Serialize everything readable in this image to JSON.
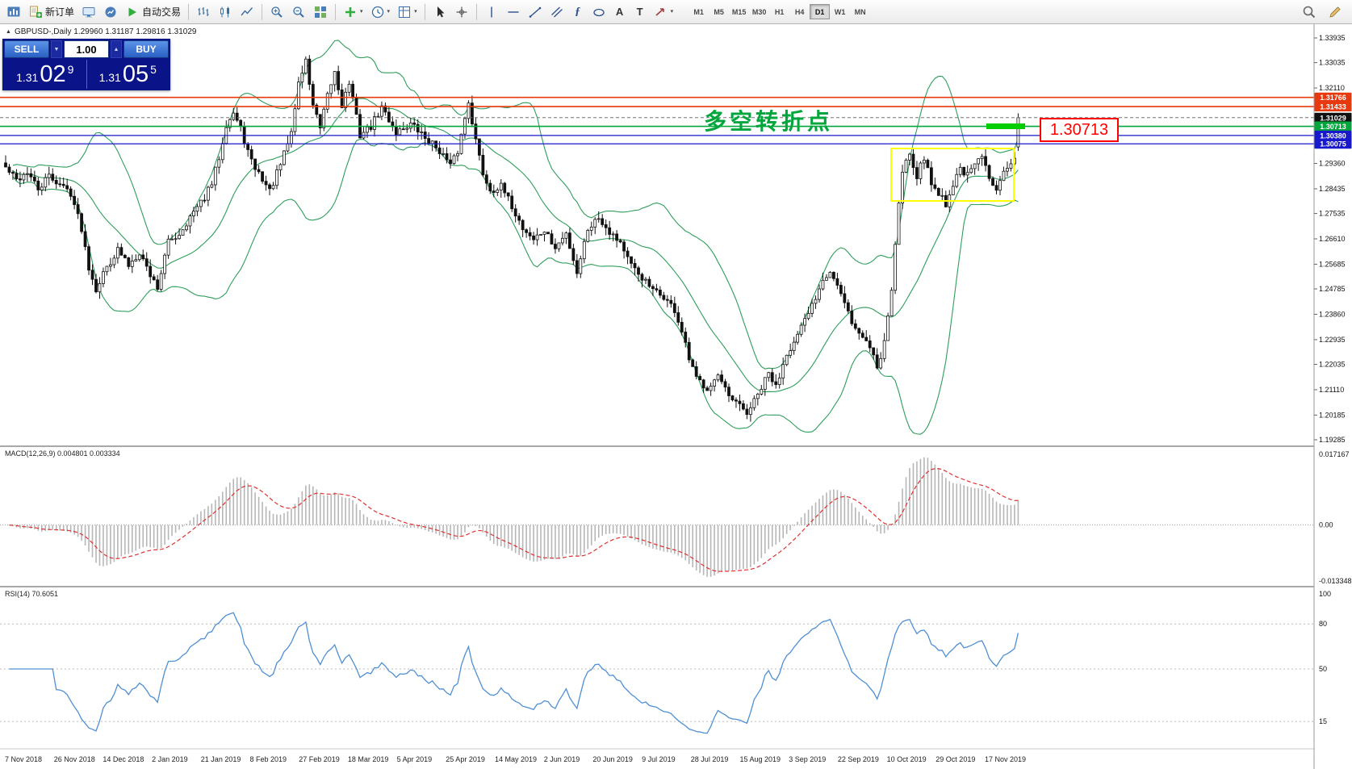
{
  "icons": {
    "dropdown_arrow": "▾",
    "up_spinner": "▲",
    "down_spinner": "▼",
    "collapse_triangle": "▲",
    "fibonacci_tool": "ƒ",
    "text_tool": "A",
    "label_tool": "T"
  },
  "toolbar": {
    "new_order": "新订单",
    "auto_trading": "自动交易",
    "timeframes": [
      "M1",
      "M5",
      "M15",
      "M30",
      "H1",
      "H4",
      "D1",
      "W1",
      "MN"
    ],
    "active_timeframe": "D1"
  },
  "trade_panel": {
    "sell_label": "SELL",
    "buy_label": "BUY",
    "volume": "1.00",
    "sell_price_main": "1.31",
    "sell_price_big": "02",
    "sell_price_sup": "9",
    "buy_price_main": "1.31",
    "buy_price_big": "05",
    "buy_price_sup": "5"
  },
  "chart": {
    "title": "GBPUSD-,Daily 1.29960 1.31187 1.29816 1.31029"
  },
  "indicators": {
    "macd_label": "MACD(12,26,9) 0.004801 0.003334",
    "rsi_label": "RSI(14) 70.6051"
  },
  "annotations": {
    "turning_point_text": "多空转折点",
    "price_label": "1.30713"
  },
  "chart_data": {
    "type": "candlestick",
    "symbol": "GBPUSD-",
    "timeframe": "Daily",
    "current_bar": {
      "open": 1.2996,
      "high": 1.31187,
      "low": 1.29816,
      "close": 1.31029
    },
    "num_candles": 281,
    "price_axis": {
      "max": 1.33935,
      "min": 1.19285,
      "ticks": [
        "1.33935",
        "1.33035",
        "1.32110",
        "1.29360",
        "1.28435",
        "1.27535",
        "1.26610",
        "1.25685",
        "1.24785",
        "1.23860",
        "1.22935",
        "1.22035",
        "1.21110",
        "1.20185",
        "1.19285"
      ]
    },
    "horizontal_lines": [
      {
        "price": 1.31766,
        "color": "#e8380d",
        "width": 1.6,
        "style": "solid"
      },
      {
        "price": 1.31433,
        "color": "#e8380d",
        "width": 1.6,
        "style": "solid"
      },
      {
        "price": 1.31029,
        "color": "#777777",
        "width": 1.0,
        "style": "current"
      },
      {
        "price": 1.30713,
        "color": "#00a63c",
        "width": 1.6,
        "style": "solid"
      },
      {
        "price": 1.3038,
        "color": "#1818cc",
        "width": 1.3,
        "style": "solid"
      },
      {
        "price": 1.30075,
        "color": "#1818cc",
        "width": 1.3,
        "style": "solid"
      }
    ],
    "badges": [
      {
        "value": "1.31766",
        "price": 1.31766,
        "bg": "#e8380d"
      },
      {
        "value": "1.31433",
        "price": 1.31433,
        "bg": "#e8380d"
      },
      {
        "value": "1.31029",
        "price": 1.31029,
        "bg": "#111111"
      },
      {
        "value": "1.30713",
        "price": 1.30713,
        "bg": "#00a63c"
      },
      {
        "value": "1.30380",
        "price": 1.3038,
        "bg": "#1818cc"
      },
      {
        "value": "1.30075",
        "price": 1.30075,
        "bg": "#1818cc"
      }
    ],
    "bollinger": {
      "period": 20,
      "deviation": 2,
      "color": "#2e9e5b"
    },
    "anchors": [
      [
        0,
        1.292
      ],
      [
        3,
        1.2875
      ],
      [
        6,
        1.2905
      ],
      [
        9,
        1.284
      ],
      [
        12,
        1.289
      ],
      [
        15,
        1.286
      ],
      [
        18,
        1.283
      ],
      [
        21,
        1.27
      ],
      [
        23,
        1.256
      ],
      [
        25,
        1.248
      ],
      [
        28,
        1.256
      ],
      [
        31,
        1.262
      ],
      [
        34,
        1.2565
      ],
      [
        37,
        1.2615
      ],
      [
        40,
        1.253
      ],
      [
        42,
        1.2485
      ],
      [
        45,
        1.265
      ],
      [
        48,
        1.268
      ],
      [
        51,
        1.274
      ],
      [
        54,
        1.279
      ],
      [
        57,
        1.286
      ],
      [
        59,
        1.296
      ],
      [
        61,
        1.308
      ],
      [
        63,
        1.312
      ],
      [
        65,
        1.306
      ],
      [
        68,
        1.294
      ],
      [
        71,
        1.288
      ],
      [
        73,
        1.2835
      ],
      [
        76,
        1.293
      ],
      [
        79,
        1.305
      ],
      [
        81,
        1.323
      ],
      [
        83,
        1.331
      ],
      [
        85,
        1.315
      ],
      [
        87,
        1.306
      ],
      [
        89,
        1.318
      ],
      [
        91,
        1.327
      ],
      [
        93,
        1.315
      ],
      [
        95,
        1.323
      ],
      [
        98,
        1.304
      ],
      [
        101,
        1.307
      ],
      [
        104,
        1.314
      ],
      [
        108,
        1.305
      ],
      [
        112,
        1.308
      ],
      [
        116,
        1.303
      ],
      [
        120,
        1.2985
      ],
      [
        123,
        1.2925
      ],
      [
        125,
        1.298
      ],
      [
        127,
        1.31
      ],
      [
        128,
        1.3165
      ],
      [
        130,
        1.302
      ],
      [
        132,
        1.29
      ],
      [
        134,
        1.284
      ],
      [
        137,
        1.285
      ],
      [
        140,
        1.278
      ],
      [
        143,
        1.27
      ],
      [
        146,
        1.266
      ],
      [
        149,
        1.269
      ],
      [
        152,
        1.2625
      ],
      [
        155,
        1.268
      ],
      [
        158,
        1.254
      ],
      [
        161,
        1.27
      ],
      [
        164,
        1.274
      ],
      [
        167,
        1.269
      ],
      [
        170,
        1.265
      ],
      [
        173,
        1.256
      ],
      [
        176,
        1.252
      ],
      [
        179,
        1.247
      ],
      [
        182,
        1.245
      ],
      [
        185,
        1.24
      ],
      [
        187,
        1.232
      ],
      [
        189,
        1.222
      ],
      [
        191,
        1.215
      ],
      [
        194,
        1.212
      ],
      [
        197,
        1.216
      ],
      [
        200,
        1.208
      ],
      [
        203,
        1.205
      ],
      [
        205,
        1.2025
      ],
      [
        208,
        1.209
      ],
      [
        211,
        1.217
      ],
      [
        213,
        1.212
      ],
      [
        216,
        1.225
      ],
      [
        218,
        1.228
      ],
      [
        221,
        1.236
      ],
      [
        224,
        1.245
      ],
      [
        226,
        1.252
      ],
      [
        228,
        1.2545
      ],
      [
        230,
        1.249
      ],
      [
        232,
        1.242
      ],
      [
        235,
        1.233
      ],
      [
        238,
        1.229
      ],
      [
        240,
        1.224
      ],
      [
        241,
        1.2195
      ],
      [
        242,
        1.223
      ],
      [
        243,
        1.23
      ],
      [
        244,
        1.238
      ],
      [
        245,
        1.248
      ],
      [
        246,
        1.264
      ],
      [
        247,
        1.279
      ],
      [
        248,
        1.29
      ],
      [
        249,
        1.295
      ],
      [
        250,
        1.298
      ],
      [
        252,
        1.289
      ],
      [
        254,
        1.296
      ],
      [
        256,
        1.286
      ],
      [
        258,
        1.283
      ],
      [
        260,
        1.279
      ],
      [
        262,
        1.286
      ],
      [
        264,
        1.292
      ],
      [
        266,
        1.289
      ],
      [
        268,
        1.293
      ],
      [
        270,
        1.296
      ],
      [
        272,
        1.288
      ],
      [
        274,
        1.285
      ],
      [
        276,
        1.292
      ],
      [
        278,
        1.293
      ],
      [
        279,
        1.295
      ],
      [
        280,
        1.31029
      ]
    ],
    "dates": [
      "7 Nov 2018",
      "26 Nov 2018",
      "14 Dec 2018",
      "2 Jan 2019",
      "21 Jan 2019",
      "8 Feb 2019",
      "27 Feb 2019",
      "18 Mar 2019",
      "5 Apr 2019",
      "25 Apr 2019",
      "14 May 2019",
      "2 Jun 2019",
      "20 Jun 2019",
      "9 Jul 2019",
      "28 Jul 2019",
      "15 Aug 2019",
      "3 Sep 2019",
      "22 Sep 2019",
      "10 Oct 2019",
      "29 Oct 2019",
      "17 Nov 2019"
    ],
    "macd": {
      "params": "12,26,9",
      "value": 0.004801,
      "signal_value": 0.003334,
      "scale_top": "0.017167",
      "scale_zero": "0.00",
      "scale_bottom": "-0.013348",
      "hist_color": "#b6b6b6",
      "signal_color": "#e03030"
    },
    "rsi": {
      "period": 14,
      "value": 70.6051,
      "levels": [
        80,
        50,
        15
      ],
      "scale_labels": [
        "100",
        "80",
        "50",
        "15"
      ],
      "color": "#4f8fd4"
    }
  }
}
